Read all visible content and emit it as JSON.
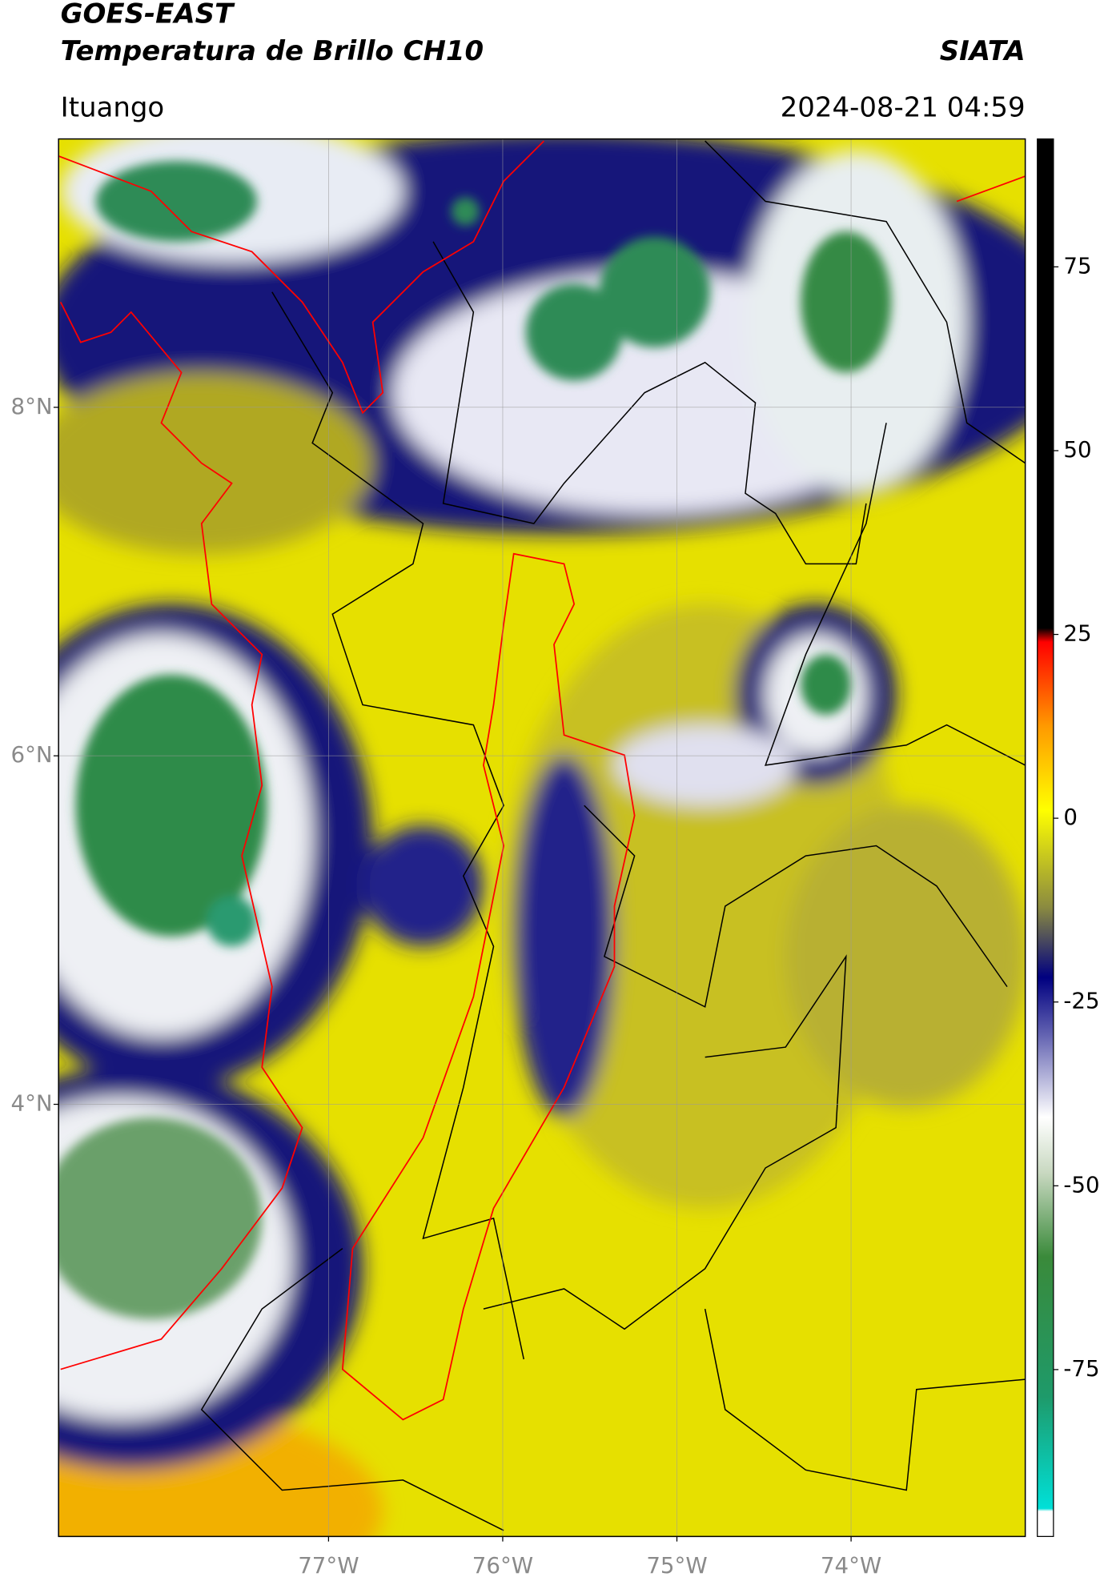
{
  "header": {
    "title": "GOES-EAST",
    "subtitle": "Temperatura de Brillo CH10",
    "agency": "SIATA",
    "location": "Ituango",
    "datetime": "2024-08-21 04:59"
  },
  "map": {
    "lat_range": [
      1.52,
      9.54
    ],
    "lon_range": [
      -78.55,
      -73.0
    ],
    "lat_ticks": [
      {
        "value": 8,
        "label": "8°N"
      },
      {
        "value": 6,
        "label": "6°N"
      },
      {
        "value": 4,
        "label": "4°N"
      }
    ],
    "lon_ticks": [
      {
        "value": -77,
        "label": "77°W"
      },
      {
        "value": -76,
        "label": "76°W"
      },
      {
        "value": -75,
        "label": "75°W"
      },
      {
        "value": -74,
        "label": "74°W"
      }
    ]
  },
  "colorbar": {
    "range": [
      -97.7,
      92.4
    ],
    "ticks": [
      75,
      50,
      25,
      0,
      -25,
      -50,
      -75
    ]
  }
}
